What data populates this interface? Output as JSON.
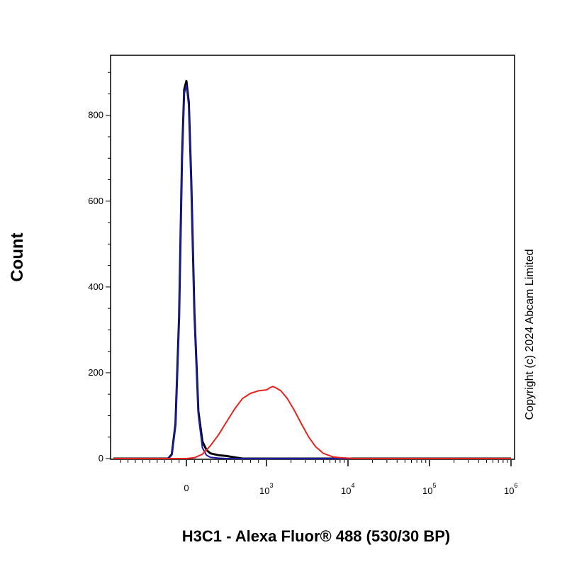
{
  "chart_data": {
    "type": "line",
    "title": "",
    "xlabel": "H3C1 - Alexa Fluor® 488 (530/30 BP)",
    "ylabel": "Count",
    "x_scale": "biexponential",
    "xlim": [
      -1000,
      1000000
    ],
    "ylim": [
      0,
      940
    ],
    "grid": false,
    "y_ticks": [
      {
        "value": 0,
        "label": "0"
      },
      {
        "value": 200,
        "label": "200"
      },
      {
        "value": 400,
        "label": "400"
      },
      {
        "value": 600,
        "label": "600"
      },
      {
        "value": 800,
        "label": "800"
      }
    ],
    "x_ticks": [
      {
        "value": 0,
        "base": "0",
        "exp": ""
      },
      {
        "value": 1000,
        "base": "10",
        "exp": "3"
      },
      {
        "value": 10000,
        "base": "10",
        "exp": "4"
      },
      {
        "value": 100000,
        "base": "10",
        "exp": "5"
      },
      {
        "value": 1000000,
        "base": "10",
        "exp": "6"
      }
    ],
    "series": [
      {
        "color": "#000000",
        "x": [
          -1000,
          -250,
          -200,
          -150,
          -100,
          -60,
          -30,
          0,
          30,
          60,
          100,
          150,
          200,
          250,
          300,
          400,
          500,
          600,
          700,
          1000,
          1000000
        ],
        "y": [
          0,
          0,
          10,
          80,
          330,
          700,
          860,
          880,
          830,
          650,
          340,
          110,
          40,
          20,
          12,
          8,
          6,
          3,
          0,
          0,
          0
        ]
      },
      {
        "color": "#1a1aa6",
        "x": [
          -1000,
          -250,
          -200,
          -150,
          -100,
          -60,
          -30,
          0,
          30,
          60,
          100,
          150,
          200,
          250,
          300,
          400,
          500,
          1000000
        ],
        "y": [
          0,
          0,
          8,
          75,
          320,
          690,
          850,
          870,
          820,
          640,
          330,
          100,
          25,
          8,
          3,
          1,
          0,
          0
        ]
      },
      {
        "color": "#e8231e",
        "x": [
          -1000,
          0,
          100,
          200,
          300,
          400,
          500,
          600,
          700,
          800,
          900,
          1000,
          1100,
          1200,
          1300,
          1500,
          1800,
          2200,
          2700,
          3300,
          4000,
          5000,
          6500,
          8000,
          10000,
          12000,
          1000000
        ],
        "y": [
          0,
          0,
          2,
          10,
          30,
          55,
          85,
          115,
          140,
          152,
          158,
          160,
          165,
          168,
          165,
          158,
          140,
          112,
          80,
          50,
          28,
          12,
          4,
          2,
          1,
          0,
          0
        ]
      }
    ]
  },
  "copyright": "Copyright (c) 2024 Abcam Limited"
}
